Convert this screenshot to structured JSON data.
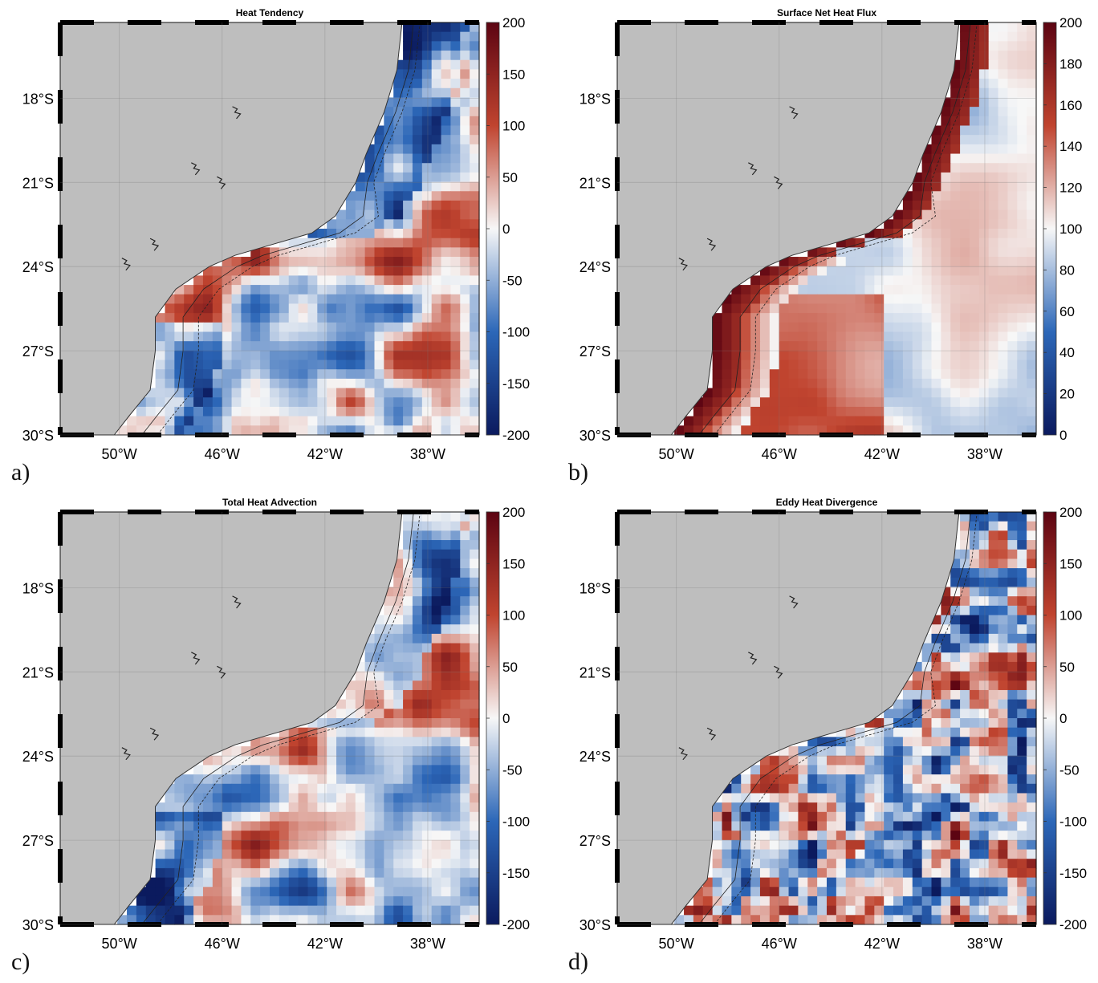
{
  "chart_data": [
    {
      "type": "heatmap",
      "panel_label": "a)",
      "title": "Heat Tendency",
      "x_ticks": [
        "50°W",
        "46°W",
        "42°W",
        "38°W"
      ],
      "y_ticks": [
        "18°S",
        "21°S",
        "24°S",
        "27°S",
        "30°S"
      ],
      "colorbar": {
        "ticks": [
          "200",
          "150",
          "100",
          "50",
          "0",
          "-50",
          "-100",
          "-150",
          "-200"
        ],
        "range": [
          -200,
          200
        ]
      },
      "xlim": [
        -52.3,
        -36.0
      ],
      "ylim": [
        -30.0,
        -15.3
      ],
      "field": "tendency"
    },
    {
      "type": "heatmap",
      "panel_label": "b)",
      "title": "Surface Net Heat Flux",
      "x_ticks": [
        "50°W",
        "46°W",
        "42°W",
        "38°W"
      ],
      "y_ticks": [
        "18°S",
        "21°S",
        "24°S",
        "27°S",
        "30°S"
      ],
      "colorbar": {
        "ticks": [
          "200",
          "180",
          "160",
          "140",
          "120",
          "100",
          "80",
          "60",
          "40",
          "20",
          "0"
        ],
        "range": [
          0,
          200
        ]
      },
      "xlim": [
        -52.3,
        -36.0
      ],
      "ylim": [
        -30.0,
        -15.3
      ],
      "field": "flux"
    },
    {
      "type": "heatmap",
      "panel_label": "c)",
      "title": "Total Heat Advection",
      "x_ticks": [
        "50°W",
        "46°W",
        "42°W",
        "38°W"
      ],
      "y_ticks": [
        "18°S",
        "21°S",
        "24°S",
        "27°S",
        "30°S"
      ],
      "colorbar": {
        "ticks": [
          "200",
          "150",
          "100",
          "50",
          "0",
          "-50",
          "-100",
          "-150",
          "-200"
        ],
        "range": [
          -200,
          200
        ]
      },
      "xlim": [
        -52.3,
        -36.0
      ],
      "ylim": [
        -30.0,
        -15.3
      ],
      "field": "advection"
    },
    {
      "type": "heatmap",
      "panel_label": "d)",
      "title": "Eddy Heat Divergence",
      "x_ticks": [
        "50°W",
        "46°W",
        "42°W",
        "38°W"
      ],
      "y_ticks": [
        "18°S",
        "21°S",
        "24°S",
        "27°S",
        "30°S"
      ],
      "colorbar": {
        "ticks": [
          "200",
          "150",
          "100",
          "50",
          "0",
          "-50",
          "-100",
          "-150",
          "-200"
        ],
        "range": [
          -200,
          200
        ]
      },
      "xlim": [
        -52.3,
        -36.0
      ],
      "ylim": [
        -30.0,
        -15.3
      ],
      "field": "eddy"
    }
  ],
  "colors": {
    "land": "#bebebe",
    "neg_extreme": "#0b1a5e",
    "neg": "#2c67b8",
    "mid": "#f7f7f7",
    "pos": "#c0442f",
    "pos_extreme": "#5c0412"
  }
}
